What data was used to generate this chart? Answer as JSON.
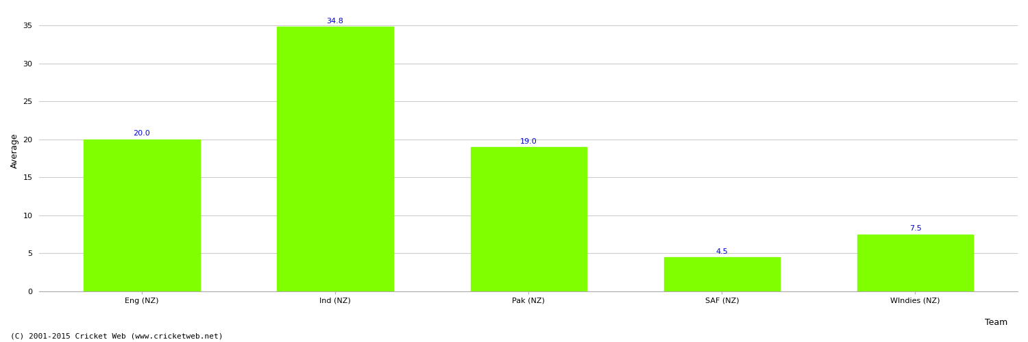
{
  "categories": [
    "Eng (NZ)",
    "Ind (NZ)",
    "Pak (NZ)",
    "SAF (NZ)",
    "WIndies (NZ)"
  ],
  "values": [
    20.0,
    34.8,
    19.0,
    4.5,
    7.5
  ],
  "bar_color": "#7fff00",
  "bar_edge_color": "#7fff00",
  "xlabel": "Team",
  "ylabel": "Average",
  "ylim": [
    0,
    37
  ],
  "yticks": [
    0,
    5,
    10,
    15,
    20,
    25,
    30,
    35
  ],
  "label_color": "#0000cc",
  "label_fontsize": 8,
  "axis_label_fontsize": 9,
  "tick_fontsize": 8,
  "grid_color": "#cccccc",
  "bg_color": "#ffffff",
  "footer_text": "(C) 2001-2015 Cricket Web (www.cricketweb.net)",
  "footer_fontsize": 8,
  "bar_width": 0.6
}
